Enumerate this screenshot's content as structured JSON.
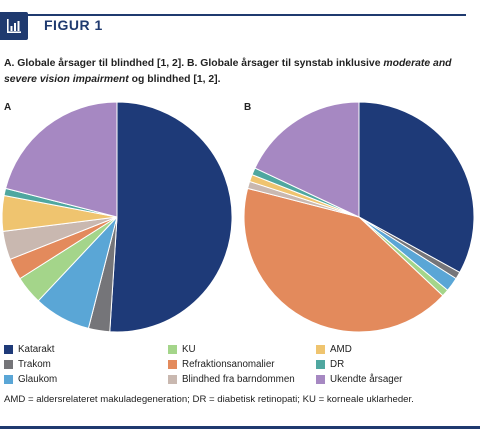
{
  "header": {
    "title": "FIGUR 1",
    "icon": "bar-chart-icon"
  },
  "caption": {
    "part1": "A. Globale årsager til blindhed [1, 2].  B. Globale årsager til synstab inklusive ",
    "italic": "moderate and severe vision impairment",
    "part2": " og blindhed [1, 2]."
  },
  "footnote": "AMD = aldersrelateret makuladegeneration; DR = diabetisk retinopati; KU = korneale uklarheder.",
  "colors": {
    "Katarakt": "#1e3a78",
    "Trakom": "#757579",
    "Glaukom": "#5aa6d6",
    "KU": "#a4d58a",
    "Refraktionsanomalier": "#e38a5c",
    "Blindhed fra barndommen": "#c9b8b0",
    "AMD": "#efc46f",
    "DR": "#4fa7a0",
    "Ukendte årsager": "#a688c2",
    "accent": "#1f3a6f"
  },
  "legend": [
    {
      "label": "Katarakt"
    },
    {
      "label": "Trakom"
    },
    {
      "label": "Glaukom"
    },
    {
      "label": "KU"
    },
    {
      "label": "Refraktionsanomalier"
    },
    {
      "label": "Blindhed fra barndommen"
    },
    {
      "label": "AMD"
    },
    {
      "label": "DR"
    },
    {
      "label": "Ukendte årsager"
    }
  ],
  "chart_data": [
    {
      "type": "pie",
      "panel_label": "A",
      "start": "12 o'clock",
      "direction": "clockwise",
      "slices": [
        {
          "label": "Katarakt",
          "value": 51
        },
        {
          "label": "Trakom",
          "value": 3
        },
        {
          "label": "Glaukom",
          "value": 8
        },
        {
          "label": "KU",
          "value": 4
        },
        {
          "label": "Refraktionsanomalier",
          "value": 3
        },
        {
          "label": "Blindhed fra barndommen",
          "value": 4
        },
        {
          "label": "AMD",
          "value": 5
        },
        {
          "label": "DR",
          "value": 1
        },
        {
          "label": "Ukendte årsager",
          "value": 21
        }
      ]
    },
    {
      "type": "pie",
      "panel_label": "B",
      "start": "12 o'clock",
      "direction": "clockwise",
      "slices": [
        {
          "label": "Katarakt",
          "value": 33
        },
        {
          "label": "Trakom",
          "value": 1
        },
        {
          "label": "Glaukom",
          "value": 2
        },
        {
          "label": "KU",
          "value": 1
        },
        {
          "label": "Refraktionsanomalier",
          "value": 42
        },
        {
          "label": "Blindhed fra barndommen",
          "value": 1
        },
        {
          "label": "AMD",
          "value": 1
        },
        {
          "label": "DR",
          "value": 1
        },
        {
          "label": "Ukendte årsager",
          "value": 18
        }
      ]
    }
  ]
}
